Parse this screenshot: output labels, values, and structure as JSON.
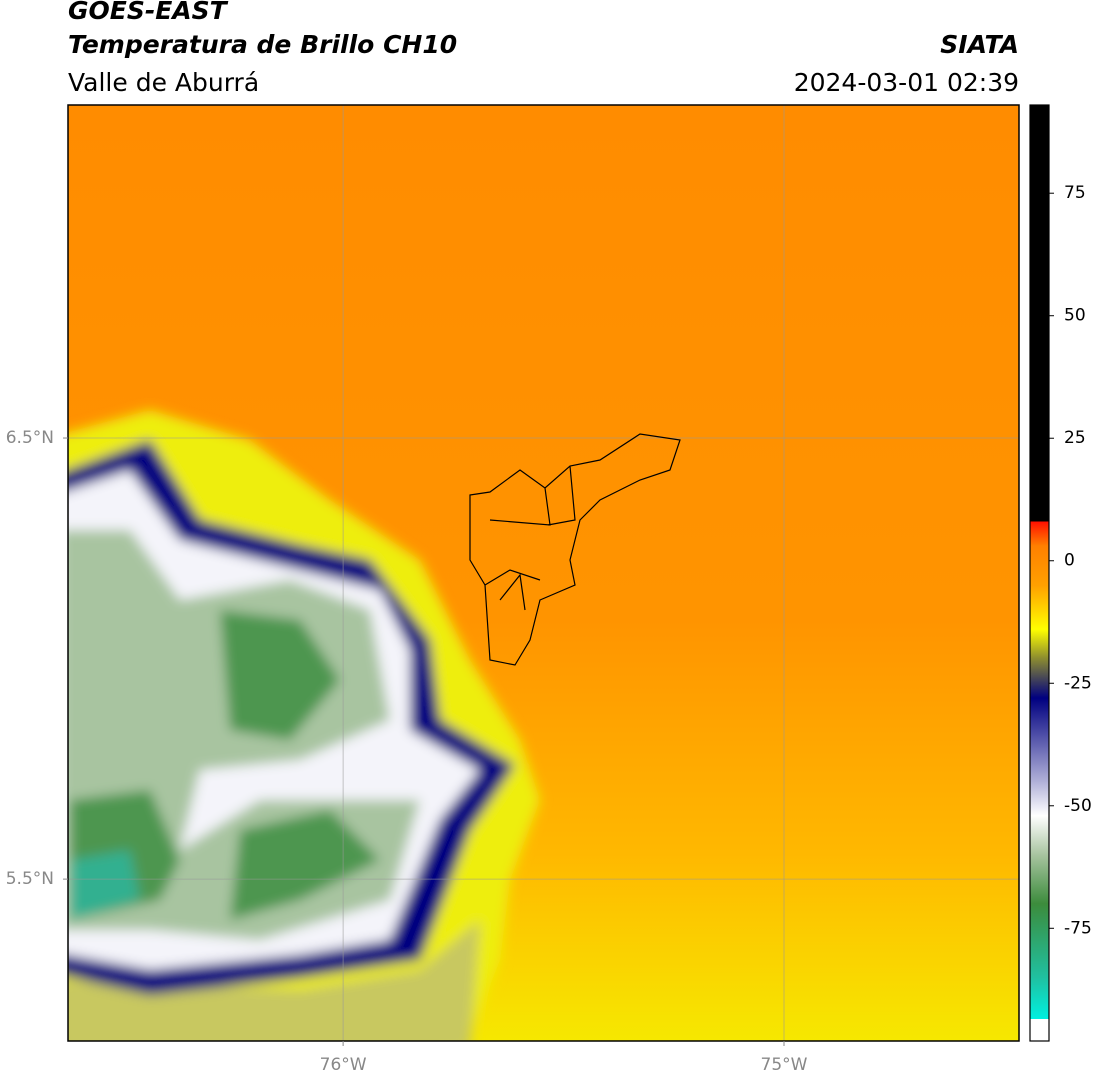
{
  "header": {
    "title": "GOES-EAST",
    "subtitle": "Temperatura de Brillo CH10",
    "region": "Valle de Aburrá",
    "source": "SIATA",
    "datetime": "2024-03-01 02:39"
  },
  "chart_data": {
    "type": "map",
    "xlim": [
      -76.624,
      -74.467
    ],
    "ylim": [
      5.133,
      7.255
    ],
    "xticks": [
      {
        "value": -76,
        "label": "76°W"
      },
      {
        "value": -75,
        "label": "75°W"
      }
    ],
    "yticks": [
      {
        "value": 6.5,
        "label": "6.5°N"
      },
      {
        "value": 5.5,
        "label": "5.5°N"
      }
    ],
    "grid": true,
    "colorbar": {
      "lim": [
        -98,
        93
      ],
      "ticks": [
        75,
        50,
        25,
        0,
        -25,
        -50,
        -75
      ],
      "stops": [
        {
          "value": -98,
          "color": "#ffffff"
        },
        {
          "value": -93.5,
          "color": "#ffffff"
        },
        {
          "value": -93.5,
          "color": "#00f0e0"
        },
        {
          "value": -85,
          "color": "#20c0a0"
        },
        {
          "value": -70,
          "color": "#3c8c3c"
        },
        {
          "value": -60,
          "color": "#a8c4a0"
        },
        {
          "value": -52,
          "color": "#ffffff"
        },
        {
          "value": -45,
          "color": "#b0b0d8"
        },
        {
          "value": -28,
          "color": "#000080"
        },
        {
          "value": -20,
          "color": "#8a8a30"
        },
        {
          "value": -14,
          "color": "#ffff00"
        },
        {
          "value": -5,
          "color": "#ffa000"
        },
        {
          "value": 3,
          "color": "#ff8000"
        },
        {
          "value": 8,
          "color": "#ff1000"
        },
        {
          "value": 8,
          "color": "#000000"
        },
        {
          "value": 93,
          "color": "#000000"
        }
      ]
    }
  }
}
